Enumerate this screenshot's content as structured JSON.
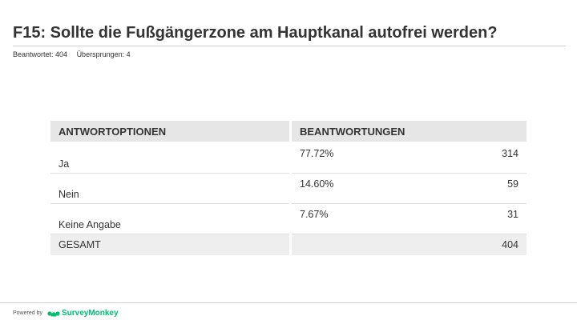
{
  "question": {
    "title": "F15: Sollte die Fußgängerzone am Hauptkanal autofrei werden?",
    "answered": "Beantwortet: 404",
    "skipped": "Übersprungen: 4"
  },
  "table": {
    "headers": {
      "options": "ANTWORTOPTIONEN",
      "responses": "BEANTWORTUNGEN"
    },
    "rows": [
      {
        "option": "Ja",
        "percent": "77.72%",
        "count": "314"
      },
      {
        "option": "Nein",
        "percent": "14.60%",
        "count": "59"
      },
      {
        "option": "Keine Angabe",
        "percent": "7.67%",
        "count": "31"
      }
    ],
    "total": {
      "label": "GESAMT",
      "count": "404"
    }
  },
  "footer": {
    "powered_by": "Powered by",
    "brand": "SurveyMonkey",
    "brand_color": "#00bf6f",
    "logo_icon": "surveymonkey-logo-icon"
  }
}
